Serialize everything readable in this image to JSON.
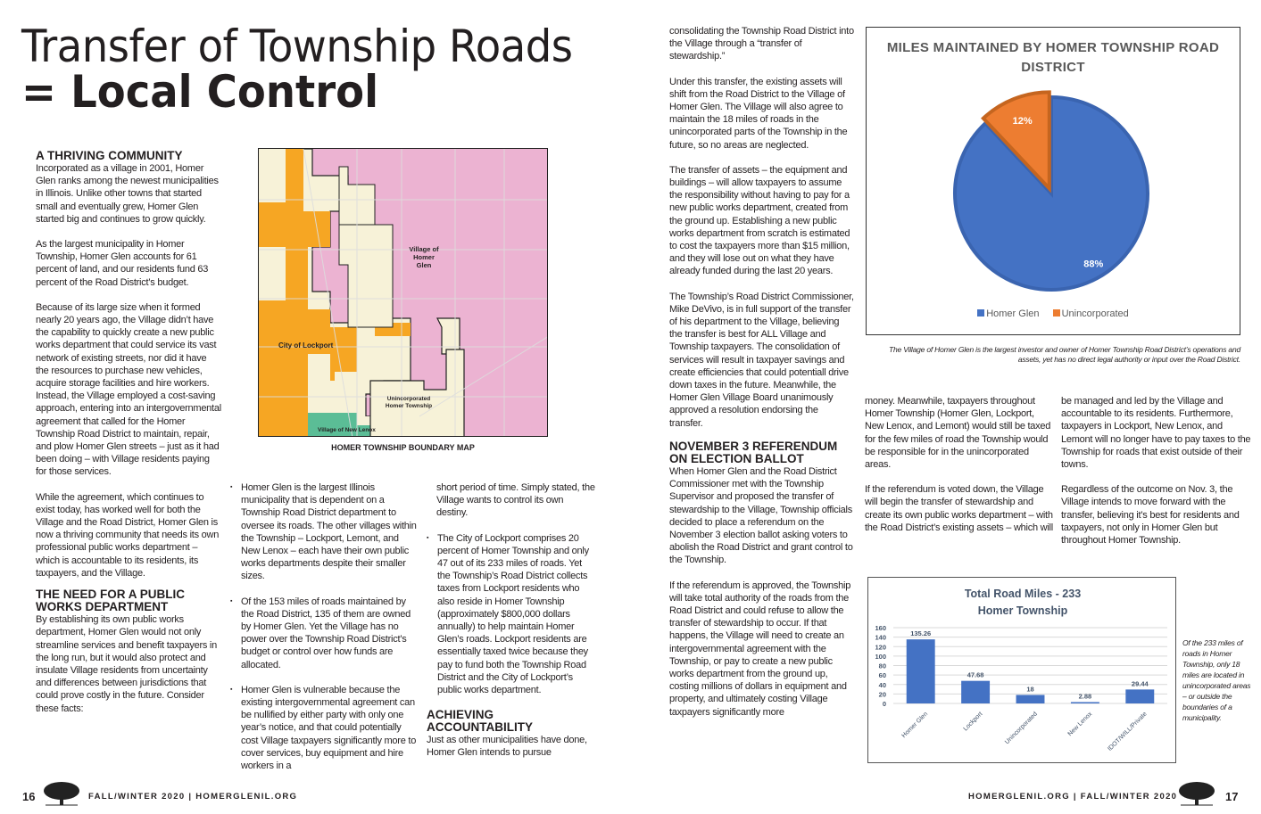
{
  "title": {
    "line1": "Transfer of Township Roads",
    "line2_prefix": "= ",
    "line2": "Local Control"
  },
  "col1": {
    "heading1": "A THRIVING COMMUNITY",
    "p1": "Incorporated as a village in 2001, Homer Glen ranks among the newest municipalities in Illinois. Unlike other towns that started small and eventually grew, Homer Glen started big and continues to grow quickly.",
    "p2": "As the largest municipality in Homer Township, Homer Glen accounts for 61 percent of land, and our residents fund 63 percent of the Road District’s budget.",
    "p3": "Because of its large size when it formed nearly 20 years ago, the Village didn’t have the capability to quickly create a new public works department that could service its vast network of existing streets, nor did it have the resources to purchase new vehicles, acquire storage facilities and hire workers. Instead, the Village employed a cost-saving approach, entering into an intergovernmental agreement that called for the Homer Township Road District to maintain, repair, and plow Homer Glen streets – just as it had been doing – with Village residents paying for those services.",
    "p4": "While the agreement, which continues to exist today, has worked well for both the Village and the Road District, Homer Glen is now a thriving community that needs its own professional public works department – which is accountable to its residents, its taxpayers, and the Village.",
    "heading2": "THE NEED FOR A PUBLIC WORKS DEPARTMENT",
    "p5": "By establishing its own public works department, Homer Glen would not only streamline services and benefit taxpayers in the long run, but it would also protect and insulate Village residents from uncertainty and differences between jurisdictions that could prove costly in the future. Consider these facts:"
  },
  "map": {
    "caption": "HOMER TOWNSHIP BOUNDARY MAP",
    "labels": {
      "homer_glen": "Village of Homer Glen",
      "lockport": "City of Lockport",
      "unincorporated": "Unincorporated Homer Township",
      "new_lenox": "Village of New Lenox"
    },
    "colors": {
      "homer_glen": "#ecb3d2",
      "lockport": "#f6a623",
      "unincorporated": "#f7f2d8",
      "new_lenox": "#5bbd96"
    }
  },
  "col2": {
    "bullets": [
      "Homer Glen is the largest Illinois municipality that is dependent on a Township Road District department to oversee its roads. The other villages within the Township – Lockport, Lemont, and New Lenox – each have their own public works departments despite their smaller sizes.",
      "Of the 153 miles of roads maintained by the Road District, 135 of them are owned by Homer Glen. Yet the Village has no power over the Township Road District’s budget or control over how funds are allocated.",
      "Homer Glen is vulnerable because the existing intergovernmental agreement can be nullified by either party with only one year’s notice, and that could potentially cost Village taxpayers significantly more to cover services, buy equipment and hire workers in a"
    ]
  },
  "col3": {
    "p1": "short period of time. Simply stated, the Village wants to control its own destiny.",
    "bullet": "The City of Lockport comprises 20 percent of Homer Township and only 47 out of its 233 miles of roads. Yet the Township’s Road District collects taxes from Lockport residents who also reside in Homer Township (approximately $800,000 dollars annually) to help maintain Homer Glen’s roads. Lockport residents are essentially taxed twice because they pay to fund both the Township Road District and the City of Lockport’s public works department.",
    "heading": "ACHIEVING ACCOUNTABILITY",
    "p2": "Just as other municipalities have done, Homer Glen intends to pursue"
  },
  "col4": {
    "p1": "consolidating the Township Road District into the Village through a “transfer of stewardship.”",
    "p2": "Under this transfer, the existing assets will shift from the Road District to the Village of Homer Glen. The Village will also agree to maintain the 18 miles of roads in the unincorporated parts of the Township in the future, so no areas are neglected.",
    "p3": "The transfer of assets – the equipment and buildings – will allow taxpayers to assume the responsibility without having to pay for a new public works department, created from the ground up. Establishing a new public works department from scratch is estimated to cost the taxpayers more than $15 million, and they will lose out on what they have already funded during the last 20 years.",
    "p4": "The Township’s Road District Commissioner, Mike DeVivo, is in full support of the transfer of his department to the Village, believing the transfer is best for ALL Village and Township taxpayers. The consolidation of services will result in taxpayer savings and create efficiencies that could potentiall drive down taxes in the future. Meanwhile, the Homer Glen Village Board unanimously approved a resolution endorsing the transfer.",
    "heading": "NOVEMBER 3 REFERENDUM ON ELECTION BALLOT",
    "p5": "When Homer Glen and the Road District Commissioner met with the Township Supervisor and proposed the transfer of stewardship to the Village, Township officials decided to place a referendum on the November 3 election ballot asking voters to abolish the Road District and grant control to the Township.",
    "p6": "If the referendum is approved, the Township will take total authority of the roads from the Road District and could refuse to allow the transfer of stewardship to occur. If that happens, the Village will need to create an intergovernmental agreement with the Township, or pay to create a new public works department from the ground up, costing millions of dollars in equipment and property, and ultimately costing Village taxpayers significantly more"
  },
  "col5": {
    "p1": "money. Meanwhile, taxpayers throughout Homer Township (Homer Glen, Lockport, New Lenox, and Lemont) would still be taxed for the few miles of road the Township would be responsible for in the unincorporated areas.",
    "p2": "If the referendum is voted down, the Village will begin the transfer of stewardship and create its own public works department – with the Road District’s existing assets – which will"
  },
  "col6": {
    "p1": "be managed and led by the Village and accountable to its residents. Furthermore, taxpayers in Lockport, New Lenox, and Lemont will no longer have to pay taxes to the Township for roads that exist outside of their towns.",
    "p2": "Regardless of the outcome on Nov. 3, the Village intends to move forward with the transfer, believing it’s best for residents and taxpayers, not only in Homer Glen but throughout Homer Township."
  },
  "pie_caption": "The Village of Homer Glen is the largest investor and owner of Homer Township Road District’s operations and assets, yet has no direct legal authority or input over the Road District.",
  "bar_caption": "Of the 233 miles of roads in Homer Township, only 18 miles are located in unincorporated areas – or outside the boundaries of a municipality.",
  "chart_data": [
    {
      "type": "pie",
      "title": "MILES MAINTAINED BY HOMER TOWNSHIP ROAD DISTRICT",
      "legend": "bottom",
      "slices": [
        {
          "name": "Homer Glen",
          "value": 88,
          "label": "88%",
          "color": "#4472c4"
        },
        {
          "name": "Unincorporated",
          "value": 12,
          "label": "12%",
          "color": "#ed7d31"
        }
      ]
    },
    {
      "type": "bar",
      "title": "Total Road Miles - 233",
      "subtitle": "Homer Township",
      "ylim": [
        0,
        160
      ],
      "yticks": [
        "0",
        "20",
        "40",
        "60",
        "80",
        "100",
        "120",
        "140",
        "160"
      ],
      "grid": true,
      "categories": [
        "Homer Glen",
        "Lockport",
        "Unincorporated",
        "New Lenox",
        "IDOT/WILL/Private"
      ],
      "values": [
        135.26,
        47.68,
        18,
        2.88,
        29.44
      ],
      "labels": [
        "135.26",
        "47.68",
        "18",
        "2.88",
        "29.44"
      ],
      "color": "#4472c4"
    }
  ],
  "footer": {
    "left_page": "16",
    "left_text": "FALL/WINTER 2020 | HOMERGLENIL.ORG",
    "right_text": "HOMERGLENIL.ORG | FALL/WINTER 2020",
    "right_page": "17"
  }
}
